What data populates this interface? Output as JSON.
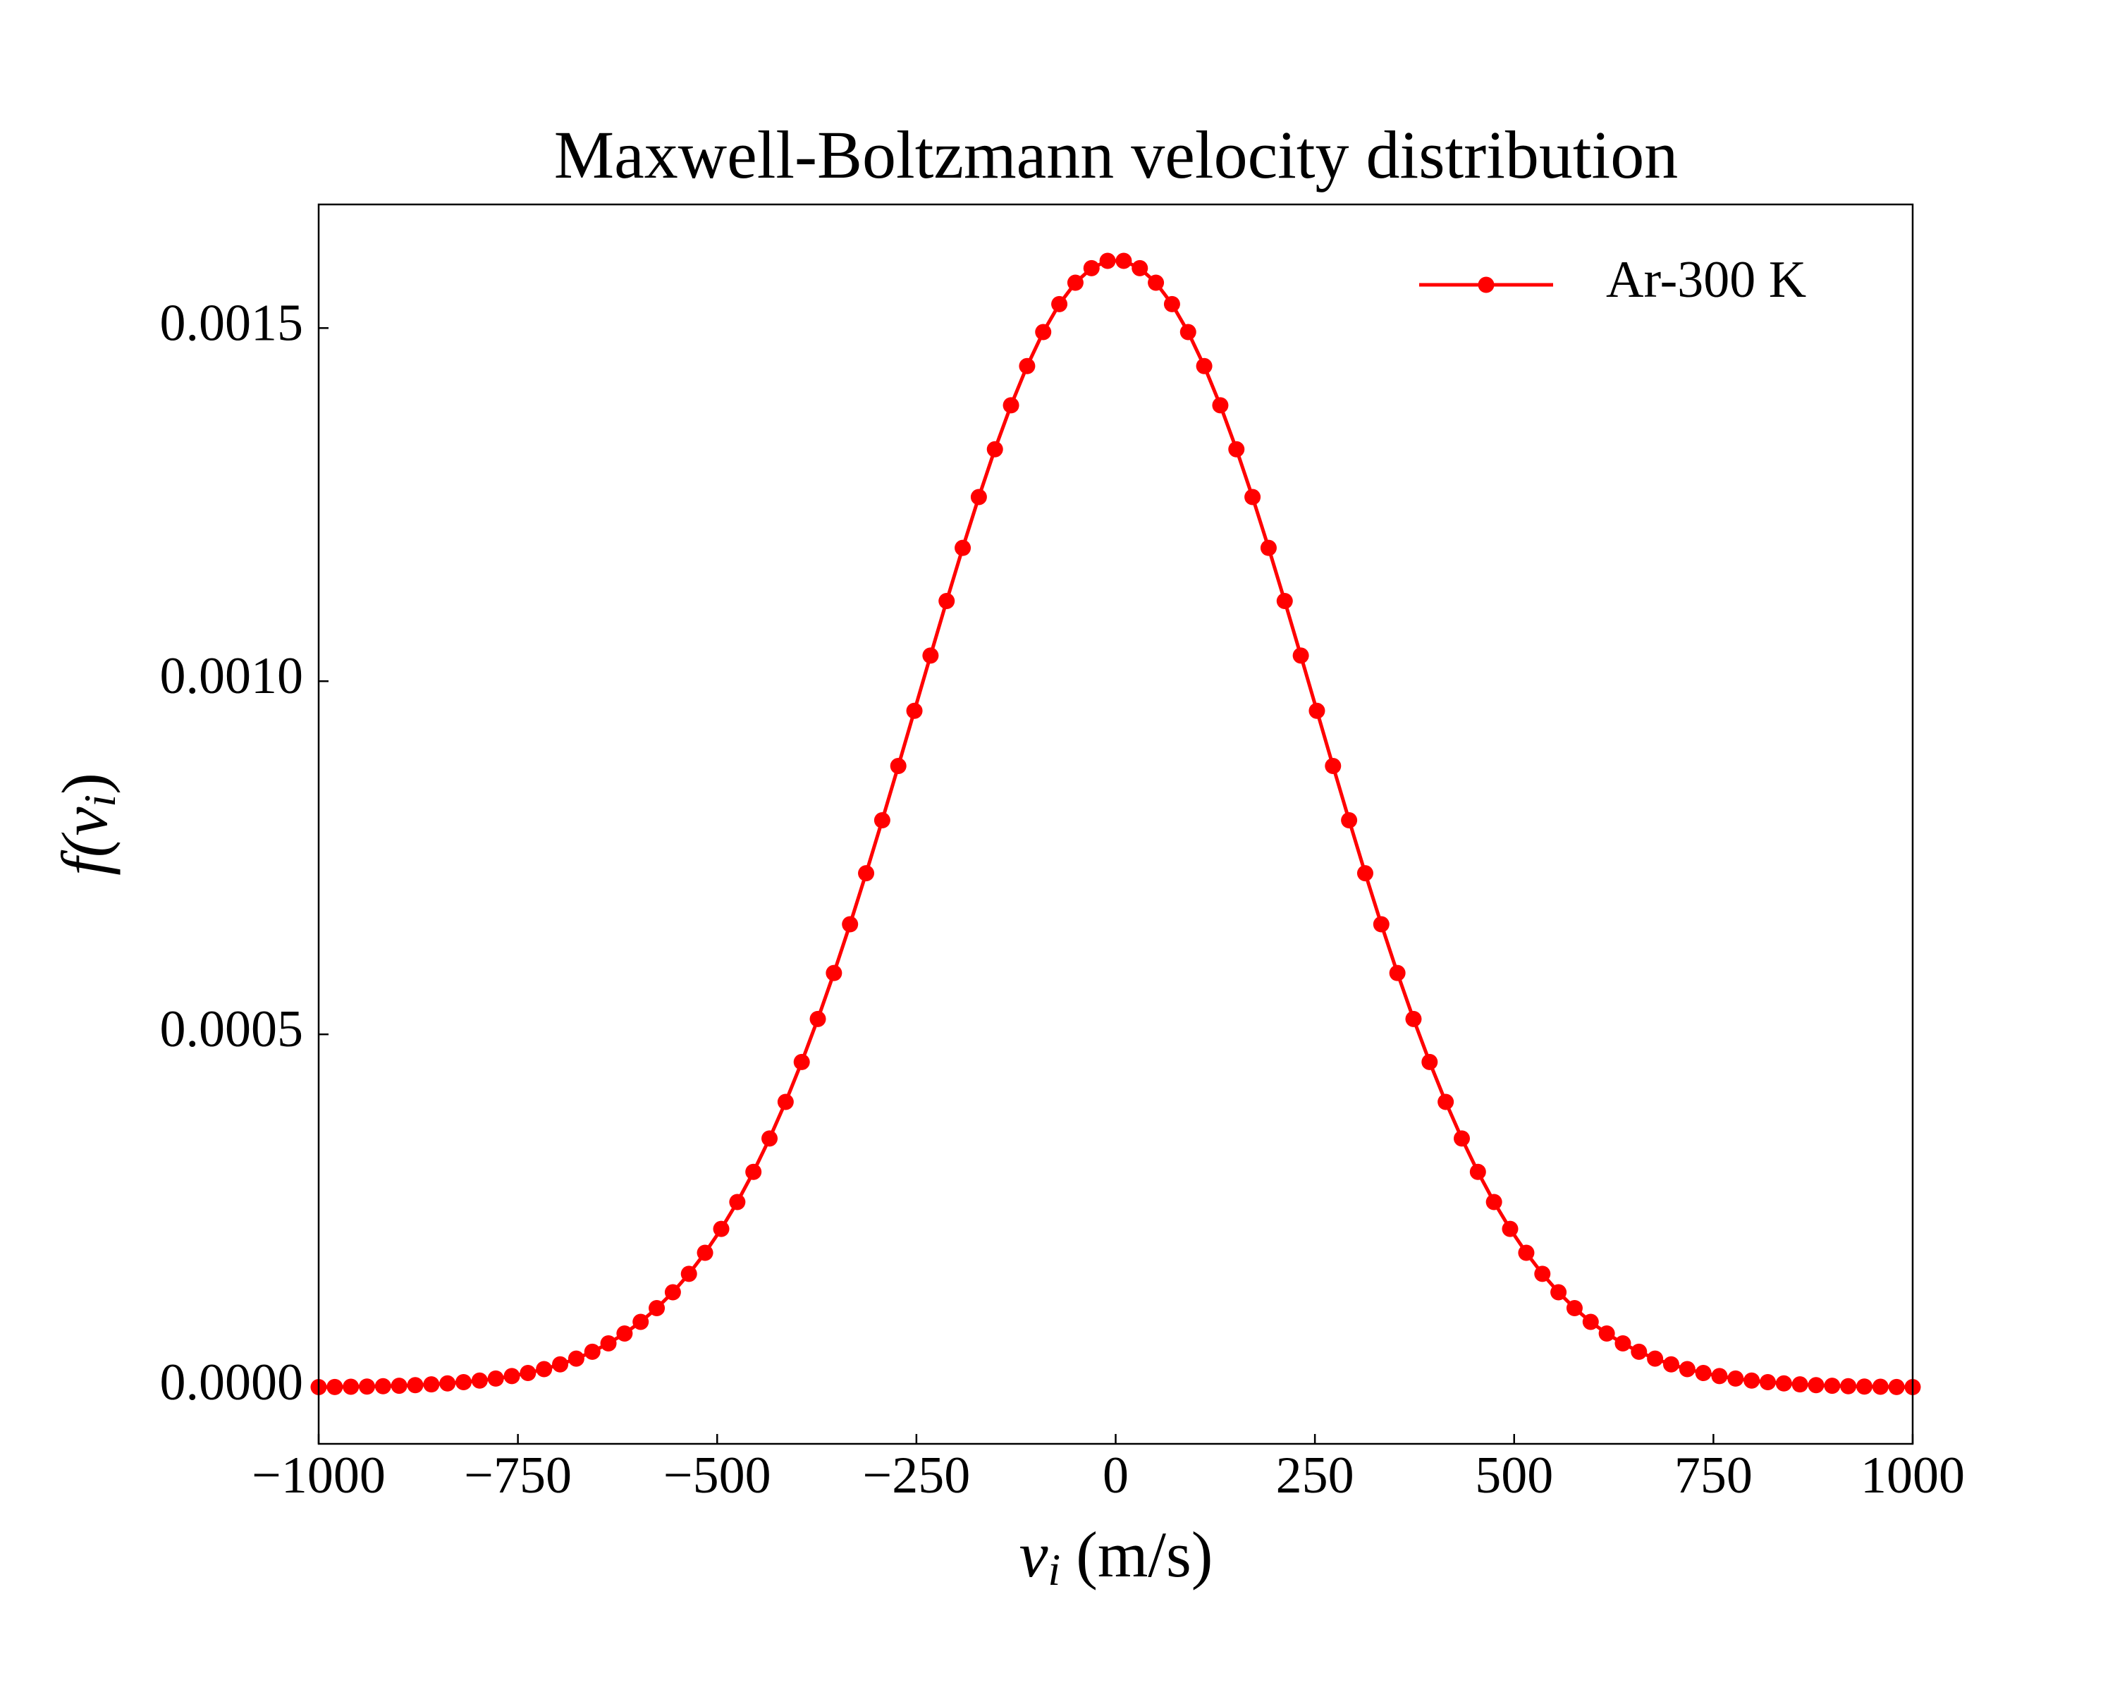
{
  "chart_data": {
    "type": "line",
    "title": "Maxwell-Boltzmann velocity distribution",
    "xlabel": {
      "symbol": "v",
      "subscript": "i",
      "unit": "(m/s)"
    },
    "ylabel": {
      "func": "f(",
      "symbol": "v",
      "subscript": "i",
      "close": ")"
    },
    "x": [
      -1000,
      -979.8,
      -959.6,
      -939.4,
      -919.2,
      -899.0,
      -878.8,
      -858.6,
      -838.4,
      -818.2,
      -798.0,
      -777.8,
      -757.6,
      -737.4,
      -717.2,
      -697.0,
      -676.8,
      -656.6,
      -636.4,
      -616.2,
      -596.0,
      -575.8,
      -555.6,
      -535.4,
      -515.2,
      -494.9,
      -474.7,
      -454.5,
      -434.3,
      -414.1,
      -393.9,
      -373.7,
      -353.5,
      -333.3,
      -313.1,
      -292.9,
      -272.7,
      -252.5,
      -232.3,
      -212.1,
      -191.9,
      -171.7,
      -151.5,
      -131.3,
      -111.1,
      -90.9,
      -70.7,
      -50.5,
      -30.3,
      -10.1,
      10.1,
      30.3,
      50.5,
      70.7,
      90.9,
      111.1,
      131.3,
      151.5,
      171.7,
      191.9,
      212.1,
      232.3,
      252.5,
      272.7,
      292.9,
      313.1,
      333.3,
      353.5,
      373.7,
      393.9,
      414.1,
      434.3,
      454.5,
      474.7,
      494.9,
      515.2,
      535.4,
      555.6,
      575.8,
      596.0,
      616.2,
      636.4,
      656.6,
      676.8,
      697.0,
      717.2,
      737.4,
      757.6,
      777.8,
      798.0,
      818.2,
      838.4,
      858.6,
      878.8,
      899.0,
      919.2,
      939.4,
      959.6,
      979.8,
      1000
    ],
    "series": [
      {
        "name": "Ar-300 K",
        "color": "#ff0000",
        "values": [
          5.3e-07,
          7.3e-07,
          1e-06,
          1.36e-06,
          1.84e-06,
          2.47e-06,
          3.29e-06,
          4.36e-06,
          5.74e-06,
          7.5e-06,
          9.74e-06,
          1.26e-05,
          1.61e-05,
          2.05e-05,
          2.6e-05,
          3.27e-05,
          4.08e-05,
          5.06e-05,
          6.24e-05,
          7.64e-05,
          9.29e-05,
          0.0001123,
          0.0001348,
          0.0001609,
          0.0001907,
          0.0002245,
          0.0002626,
          0.0003052,
          0.0003525,
          0.0004043,
          0.0004608,
          0.0005217,
          0.0005868,
          0.0006558,
          0.0007281,
          0.0008031,
          0.00088,
          0.0009581,
          0.0010363,
          0.0011135,
          0.0011887,
          0.0012607,
          0.0013284,
          0.0013906,
          0.0014462,
          0.0014943,
          0.0015339,
          0.0015642,
          0.0015848,
          0.0015952,
          0.0015952,
          0.0015848,
          0.0015642,
          0.0015339,
          0.0014943,
          0.0014462,
          0.0013906,
          0.0013284,
          0.0012607,
          0.0011887,
          0.0011135,
          0.0010363,
          0.0009581,
          0.00088,
          0.0008031,
          0.0007281,
          0.0006558,
          0.0005868,
          0.0005217,
          0.0004608,
          0.0004043,
          0.0003525,
          0.0003052,
          0.0002626,
          0.0002245,
          0.0001907,
          0.0001609,
          0.0001348,
          0.0001123,
          9.29e-05,
          7.64e-05,
          6.24e-05,
          5.06e-05,
          4.08e-05,
          3.27e-05,
          2.6e-05,
          2.05e-05,
          1.61e-05,
          1.26e-05,
          9.74e-06,
          7.5e-06,
          5.74e-06,
          4.36e-06,
          3.29e-06,
          2.47e-06,
          1.84e-06,
          1.36e-06,
          1e-06,
          7.3e-07,
          5.3e-07
        ]
      }
    ],
    "xlim": [
      -1000,
      1000
    ],
    "xticks": [
      {
        "value": -1000,
        "label": "−1000"
      },
      {
        "value": -750,
        "label": "−750"
      },
      {
        "value": -500,
        "label": "−500"
      },
      {
        "value": -250,
        "label": "−250"
      },
      0,
      250,
      500,
      750,
      1000
    ],
    "ylim": [
      -7.98e-05,
      0.001675
    ],
    "yticks": [
      {
        "value": 0,
        "label": "0.0000"
      },
      {
        "value": 0.0005,
        "label": "0.0005"
      },
      {
        "value": 0.001,
        "label": "0.0010"
      },
      {
        "value": 0.0015,
        "label": "0.0015"
      }
    ],
    "grid": false,
    "legend": "upper right",
    "markers": true
  }
}
